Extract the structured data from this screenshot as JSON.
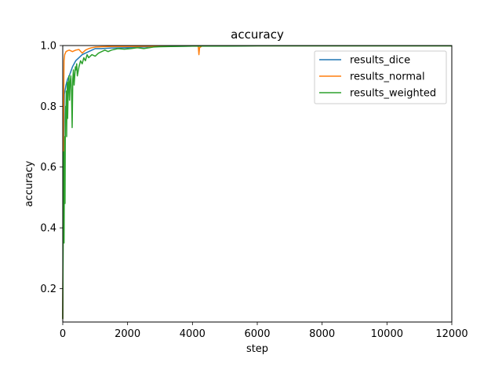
{
  "chart_data": {
    "type": "line",
    "title": "accuracy",
    "xlabel": "step",
    "ylabel": "accuracy",
    "xlim": [
      0,
      12000
    ],
    "ylim": [
      0.09,
      1.0
    ],
    "xticks": [
      0,
      2000,
      4000,
      6000,
      8000,
      10000,
      12000
    ],
    "yticks": [
      0.2,
      0.4,
      0.6,
      0.8,
      1.0
    ],
    "xtick_labels": [
      "0",
      "2000",
      "4000",
      "6000",
      "8000",
      "10000",
      "12000"
    ],
    "ytick_labels": [
      "0.2",
      "0.4",
      "0.6",
      "0.8",
      "1.0"
    ],
    "grid": false,
    "legend_position": "top-right",
    "series": [
      {
        "name": "results_dice",
        "color": "#1f77b4",
        "x": [
          0,
          20,
          50,
          100,
          150,
          200,
          300,
          400,
          500,
          600,
          700,
          800,
          900,
          1000,
          1200,
          1500,
          2000,
          2500,
          3000,
          4000,
          5000,
          6000,
          8000,
          10000,
          12000
        ],
        "y": [
          0.1,
          0.6,
          0.84,
          0.87,
          0.89,
          0.9,
          0.93,
          0.95,
          0.96,
          0.97,
          0.975,
          0.98,
          0.985,
          0.99,
          0.99,
          0.992,
          0.993,
          0.995,
          0.997,
          0.998,
          0.998,
          0.999,
          0.999,
          0.999,
          0.999
        ]
      },
      {
        "name": "results_normal",
        "color": "#ff7f0e",
        "x": [
          0,
          20,
          40,
          60,
          80,
          100,
          150,
          200,
          300,
          400,
          500,
          600,
          700,
          800,
          900,
          1000,
          1200,
          1500,
          2000,
          3000,
          4000,
          4180,
          4200,
          4220,
          4300,
          5000,
          6000,
          8000,
          10000,
          12000
        ],
        "y": [
          0.1,
          0.7,
          0.95,
          0.97,
          0.975,
          0.98,
          0.983,
          0.985,
          0.98,
          0.985,
          0.987,
          0.975,
          0.985,
          0.99,
          0.993,
          0.995,
          0.996,
          0.997,
          0.997,
          0.998,
          0.998,
          0.998,
          0.97,
          0.993,
          0.999,
          0.999,
          0.999,
          0.999,
          0.999,
          0.999
        ]
      },
      {
        "name": "results_weighted",
        "color": "#2ca02c",
        "x": [
          0,
          10,
          20,
          30,
          40,
          50,
          60,
          70,
          80,
          90,
          100,
          110,
          120,
          130,
          140,
          150,
          170,
          190,
          210,
          230,
          250,
          270,
          290,
          310,
          330,
          350,
          370,
          390,
          410,
          430,
          450,
          500,
          550,
          600,
          650,
          700,
          750,
          800,
          900,
          1000,
          1100,
          1200,
          1300,
          1400,
          1500,
          1700,
          1900,
          2100,
          2300,
          2500,
          2800,
          3000,
          3500,
          4000,
          5000,
          6000,
          8000,
          10000,
          12000
        ],
        "y": [
          0.1,
          0.3,
          0.6,
          0.65,
          0.35,
          0.55,
          0.7,
          0.48,
          0.75,
          0.8,
          0.78,
          0.85,
          0.7,
          0.82,
          0.88,
          0.76,
          0.86,
          0.9,
          0.82,
          0.88,
          0.9,
          0.85,
          0.73,
          0.89,
          0.92,
          0.87,
          0.9,
          0.93,
          0.92,
          0.94,
          0.9,
          0.93,
          0.95,
          0.94,
          0.96,
          0.95,
          0.97,
          0.96,
          0.97,
          0.965,
          0.975,
          0.98,
          0.985,
          0.98,
          0.985,
          0.99,
          0.988,
          0.99,
          0.993,
          0.99,
          0.995,
          0.996,
          0.997,
          0.998,
          0.998,
          0.999,
          0.999,
          0.999,
          0.999
        ]
      }
    ]
  }
}
